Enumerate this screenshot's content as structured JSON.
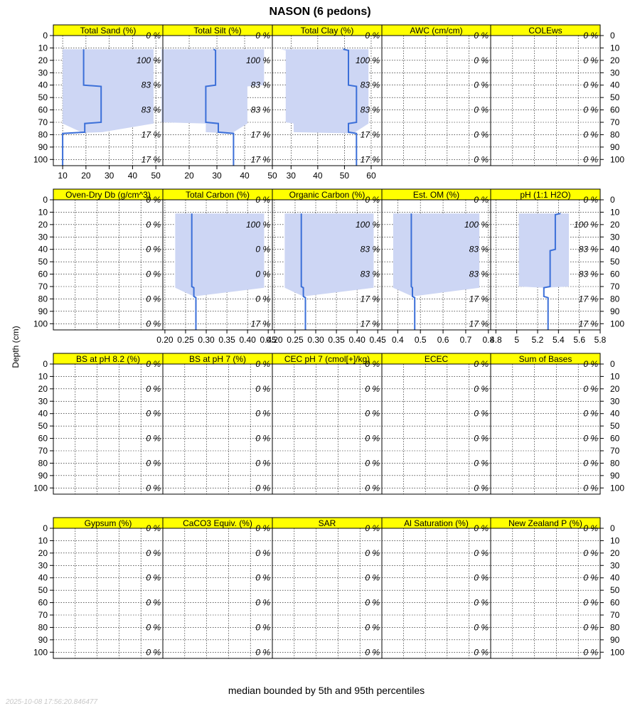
{
  "figure": {
    "title": "NASON (6 pedons)",
    "ylabel": "Depth (cm)",
    "caption": "median bounded by 5th and 95th percentiles",
    "timestamp": "2025-10-08 17:56:20.846477",
    "colors": {
      "strip": "#ffff00",
      "band": "#cdd6f4",
      "line": "#3b6fd8",
      "grid": "#000000"
    }
  },
  "chart_data": {
    "type": "line",
    "y_axis": {
      "label": "Depth (cm)",
      "reversed": true,
      "ylim": [
        0,
        105
      ],
      "ticks": [
        0,
        10,
        20,
        30,
        40,
        50,
        60,
        70,
        80,
        90,
        100
      ]
    },
    "grid": true,
    "pct_depths": [
      0,
      20,
      40,
      60,
      80,
      100
    ],
    "panels": [
      {
        "name": "Total Sand (%)",
        "row": 0,
        "col": 0,
        "xlim": [
          6,
          53
        ],
        "ticks": [
          10,
          20,
          30,
          40,
          50
        ],
        "pct": [
          "0 %",
          "100 %",
          "83 %",
          "83 %",
          "17 %",
          "17 %"
        ],
        "depth": [
          11,
          40,
          41,
          70,
          71,
          78,
          79,
          105
        ],
        "median": [
          19,
          19,
          26.5,
          26.5,
          19.5,
          19.5,
          10,
          10
        ],
        "lower": [
          10,
          10,
          10,
          10,
          10,
          18,
          10,
          10
        ],
        "upper": [
          49,
          49,
          49,
          49,
          49,
          27,
          10,
          10
        ]
      },
      {
        "name": "Total Silt (%)",
        "row": 0,
        "col": 1,
        "xlim": [
          10.5,
          50
        ],
        "ticks": [
          20,
          30,
          40,
          50
        ],
        "pct": [
          "0 %",
          "100 %",
          "83 %",
          "83 %",
          "17 %",
          "17 %"
        ],
        "depth": [
          11,
          12,
          40,
          41,
          70,
          71,
          78,
          79,
          105
        ],
        "median": [
          28.8,
          29.5,
          29.5,
          26,
          26,
          30.5,
          30.5,
          36,
          36
        ],
        "lower": [
          10,
          10,
          10,
          10,
          10,
          26,
          26,
          36,
          36
        ],
        "upper": [
          47,
          47,
          47,
          41,
          41,
          41,
          36,
          36,
          36
        ]
      },
      {
        "name": "Total Clay (%)",
        "row": 0,
        "col": 2,
        "xlim": [
          23,
          64
        ],
        "ticks": [
          30,
          40,
          50,
          60
        ],
        "pct": [
          "0 %",
          "100 %",
          "83 %",
          "83 %",
          "17 %",
          "17 %"
        ],
        "depth": [
          11,
          12,
          40,
          41,
          70,
          71,
          78,
          79,
          105
        ],
        "median": [
          49.5,
          51.5,
          51.5,
          54.5,
          54.5,
          51.5,
          51.5,
          54.5,
          54.5
        ],
        "lower": [
          26,
          28,
          28,
          28,
          28,
          31,
          31,
          54.5,
          54.5
        ],
        "upper": [
          59,
          59,
          59,
          59,
          59,
          59,
          54,
          54.5,
          54.5
        ]
      },
      {
        "name": "AWC (cm/cm)",
        "row": 0,
        "col": 3,
        "pct": [
          "0 %",
          "0 %",
          "0 %",
          "0 %",
          "0 %",
          "0 %"
        ]
      },
      {
        "name": "COLEws",
        "row": 0,
        "col": 4,
        "pct": [
          "0 %",
          "0 %",
          "0 %",
          "0 %",
          "0 %",
          "0 %"
        ]
      },
      {
        "name": "Oven-Dry Db (g/cm^3)",
        "row": 1,
        "col": 0,
        "pct": [
          "0 %",
          "0 %",
          "0 %",
          "0 %",
          "0 %",
          "0 %"
        ]
      },
      {
        "name": "Total Carbon (%)",
        "row": 1,
        "col": 1,
        "xlim": [
          0.195,
          0.46
        ],
        "ticks": [
          0.2,
          0.25,
          0.3,
          0.35,
          0.4,
          0.45
        ],
        "tick_labels": [
          "0.20",
          "0.25",
          "0.30",
          "0.35",
          "0.40",
          "0.45"
        ],
        "pct": [
          "0 %",
          "100 %",
          "0 %",
          "0 %",
          "0 %",
          "17 %"
        ],
        "depth": [
          11,
          70,
          71,
          78,
          79,
          105
        ],
        "median": [
          0.265,
          0.265,
          0.27,
          0.27,
          0.275,
          0.275
        ],
        "lower": [
          0.225,
          0.225,
          0.225,
          0.27,
          0.275,
          0.275
        ],
        "upper": [
          0.44,
          0.44,
          0.44,
          0.27,
          0.275,
          0.275
        ]
      },
      {
        "name": "Organic Carbon (%)",
        "row": 1,
        "col": 2,
        "xlim": [
          0.195,
          0.46
        ],
        "ticks": [
          0.2,
          0.25,
          0.3,
          0.35,
          0.4,
          0.45
        ],
        "tick_labels": [
          "0.20",
          "0.25",
          "0.30",
          "0.35",
          "0.40",
          "0.45"
        ],
        "pct": [
          "0 %",
          "100 %",
          "83 %",
          "83 %",
          "17 %",
          "17 %"
        ],
        "depth": [
          11,
          70,
          71,
          78,
          79,
          105
        ],
        "median": [
          0.265,
          0.265,
          0.27,
          0.27,
          0.275,
          0.275
        ],
        "lower": [
          0.225,
          0.225,
          0.225,
          0.27,
          0.275,
          0.275
        ],
        "upper": [
          0.44,
          0.44,
          0.44,
          0.27,
          0.275,
          0.275
        ]
      },
      {
        "name": "Est. OM (%)",
        "row": 1,
        "col": 3,
        "xlim": [
          0.33,
          0.81
        ],
        "ticks": [
          0.4,
          0.5,
          0.6,
          0.7,
          0.8
        ],
        "tick_labels": [
          "0.4",
          "0.5",
          "0.6",
          "0.7",
          "0.8"
        ],
        "pct": [
          "0 %",
          "100 %",
          "83 %",
          "83 %",
          "17 %",
          "17 %"
        ],
        "depth": [
          11,
          70,
          71,
          78,
          79,
          105
        ],
        "median": [
          0.46,
          0.46,
          0.465,
          0.465,
          0.475,
          0.475
        ],
        "lower": [
          0.38,
          0.38,
          0.38,
          0.465,
          0.475,
          0.475
        ],
        "upper": [
          0.76,
          0.76,
          0.76,
          0.465,
          0.475,
          0.475
        ]
      },
      {
        "name": "pH (1:1 H2O)",
        "row": 1,
        "col": 4,
        "xlim": [
          4.75,
          5.8
        ],
        "ticks": [
          4.8,
          5.0,
          5.2,
          5.4,
          5.6,
          5.8
        ],
        "tick_labels": [
          "4.8",
          "5",
          "5.2",
          "5.4",
          "5.6",
          "5.8"
        ],
        "pct": [
          "0 %",
          "100 %",
          "83 %",
          "83 %",
          "17 %",
          "17 %"
        ],
        "depth": [
          11,
          12,
          40,
          41,
          70,
          71,
          78,
          79,
          105
        ],
        "median": [
          5.42,
          5.37,
          5.37,
          5.32,
          5.32,
          5.26,
          5.26,
          5.3,
          5.3
        ],
        "lower": [
          5.02,
          5.02,
          5.02,
          5.02,
          5.02,
          5.26,
          5.26,
          5.3,
          5.3
        ],
        "upper": [
          5.5,
          5.5,
          5.5,
          5.5,
          5.5,
          5.26,
          5.26,
          5.3,
          5.3
        ]
      },
      {
        "name": "BS at pH 8.2 (%)",
        "row": 2,
        "col": 0,
        "pct": [
          "0 %",
          "0 %",
          "0 %",
          "0 %",
          "0 %",
          "0 %"
        ]
      },
      {
        "name": "BS at pH 7 (%)",
        "row": 2,
        "col": 1,
        "pct": [
          "0 %",
          "0 %",
          "0 %",
          "0 %",
          "0 %",
          "0 %"
        ]
      },
      {
        "name": "CEC pH 7 (cmol[+]/kg)",
        "row": 2,
        "col": 2,
        "pct": [
          "0 %",
          "0 %",
          "0 %",
          "0 %",
          "0 %",
          "0 %"
        ]
      },
      {
        "name": "ECEC",
        "row": 2,
        "col": 3,
        "pct": [
          "0 %",
          "0 %",
          "0 %",
          "0 %",
          "0 %",
          "0 %"
        ]
      },
      {
        "name": "Sum of Bases",
        "row": 2,
        "col": 4,
        "pct": [
          "0 %",
          "0 %",
          "0 %",
          "0 %",
          "0 %",
          "0 %"
        ]
      },
      {
        "name": "Gypsum (%)",
        "row": 3,
        "col": 0,
        "pct": [
          "0 %",
          "0 %",
          "0 %",
          "0 %",
          "0 %",
          "0 %"
        ]
      },
      {
        "name": "CaCO3 Equiv. (%)",
        "row": 3,
        "col": 1,
        "pct": [
          "0 %",
          "0 %",
          "0 %",
          "0 %",
          "0 %",
          "0 %"
        ]
      },
      {
        "name": "SAR",
        "row": 3,
        "col": 2,
        "pct": [
          "0 %",
          "0 %",
          "0 %",
          "0 %",
          "0 %",
          "0 %"
        ]
      },
      {
        "name": "Al Saturation (%)",
        "row": 3,
        "col": 3,
        "pct": [
          "0 %",
          "0 %",
          "0 %",
          "0 %",
          "0 %",
          "0 %"
        ]
      },
      {
        "name": "New Zealand P (%)",
        "row": 3,
        "col": 4,
        "pct": [
          "0 %",
          "0 %",
          "0 %",
          "0 %",
          "0 %",
          "0 %"
        ]
      }
    ]
  }
}
